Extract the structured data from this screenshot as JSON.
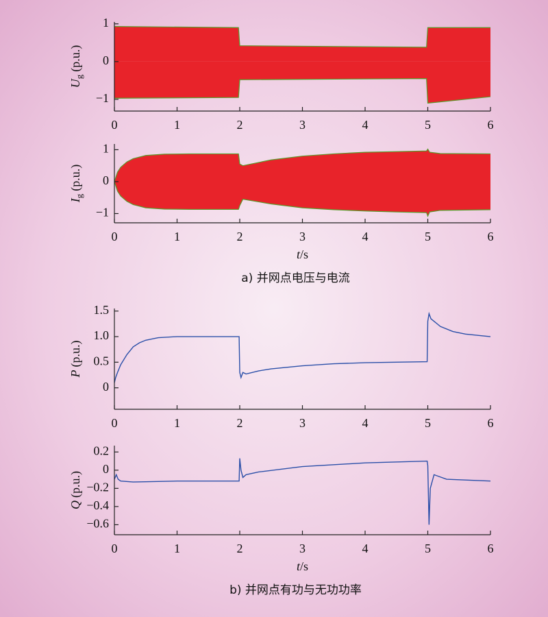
{
  "chart_data": [
    {
      "type": "band",
      "ylabel": {
        "symbol": "U",
        "sub": "g",
        "unit": "(p.u.)"
      },
      "x": [
        0,
        1.98,
        2,
        4.98,
        5,
        6
      ],
      "upper": [
        0.93,
        0.9,
        0.42,
        0.38,
        0.9,
        0.9
      ],
      "lower": [
        -0.97,
        -0.95,
        -0.48,
        -0.45,
        -1.1,
        -0.93
      ],
      "color": "#e8232a",
      "edge_color": "#5a9a2a",
      "xlim": [
        0,
        6
      ],
      "xticks": [
        0,
        1,
        2,
        3,
        4,
        5,
        6
      ],
      "ylim": [
        -1.31,
        1.05
      ],
      "yticks": [
        {
          "value": -1,
          "label": "−1"
        },
        0,
        1
      ]
    },
    {
      "type": "band",
      "ylabel": {
        "symbol": "I",
        "sub": "g",
        "unit": "(p.u.)"
      },
      "x": [
        0,
        0.05,
        0.1,
        0.2,
        0.3,
        0.5,
        0.8,
        1.2,
        1.98,
        2,
        2.05,
        2.5,
        3,
        3.5,
        4,
        4.5,
        4.98,
        5,
        5.03,
        5.2,
        6
      ],
      "upper": [
        0,
        0.3,
        0.45,
        0.62,
        0.72,
        0.82,
        0.86,
        0.87,
        0.87,
        0.55,
        0.5,
        0.68,
        0.8,
        0.87,
        0.92,
        0.94,
        0.96,
        1.02,
        0.92,
        0.88,
        0.87
      ],
      "lower": [
        0,
        -0.3,
        -0.45,
        -0.62,
        -0.72,
        -0.82,
        -0.86,
        -0.87,
        -0.87,
        -0.75,
        -0.55,
        -0.7,
        -0.82,
        -0.88,
        -0.92,
        -0.95,
        -0.97,
        -1.08,
        -0.95,
        -0.9,
        -0.88
      ],
      "color": "#e8232a",
      "edge_color": "#5a9a2a",
      "xlim": [
        0,
        6
      ],
      "xticks": [
        0,
        1,
        2,
        3,
        4,
        5,
        6
      ],
      "ylim": [
        -1.29,
        1.18
      ],
      "yticks": [
        {
          "value": -1,
          "label": "−1"
        },
        0,
        1
      ],
      "xlabel": {
        "symbol": "t",
        "unit": "/s"
      },
      "caption": "a) 并网点电压与电流"
    },
    {
      "type": "line",
      "ylabel": {
        "symbol": "P",
        "unit": "(p.u.)"
      },
      "x": [
        0,
        0.02,
        0.05,
        0.1,
        0.2,
        0.3,
        0.4,
        0.5,
        0.7,
        1,
        1.5,
        1.99,
        2,
        2.02,
        2.05,
        2.1,
        2.3,
        2.5,
        3,
        3.5,
        4,
        4.5,
        4.99,
        5,
        5.02,
        5.05,
        5.1,
        5.2,
        5.4,
        5.6,
        6
      ],
      "values": [
        0.1,
        0.2,
        0.3,
        0.45,
        0.65,
        0.8,
        0.88,
        0.93,
        0.98,
        1,
        1,
        1,
        0.3,
        0.2,
        0.3,
        0.27,
        0.33,
        0.37,
        0.43,
        0.47,
        0.49,
        0.5,
        0.51,
        1.3,
        1.45,
        1.35,
        1.3,
        1.2,
        1.1,
        1.05,
        1.0
      ],
      "color": "#2a4fa8",
      "xlim": [
        0,
        6
      ],
      "xticks": [
        0,
        1,
        2,
        3,
        4,
        5,
        6
      ],
      "ylim": [
        -0.42,
        1.55
      ],
      "yticks": [
        0,
        0.5,
        {
          "value": 1,
          "label": "1.0"
        },
        1.5
      ]
    },
    {
      "type": "line",
      "ylabel": {
        "symbol": "Q",
        "unit": "(p.u.)"
      },
      "x": [
        0,
        0.03,
        0.06,
        0.1,
        0.3,
        1,
        1.99,
        2,
        2.02,
        2.05,
        2.1,
        2.3,
        3,
        4,
        4.99,
        5,
        5.02,
        5.04,
        5.1,
        5.3,
        6
      ],
      "values": [
        -0.1,
        -0.05,
        -0.1,
        -0.12,
        -0.13,
        -0.12,
        -0.12,
        0.13,
        0,
        -0.08,
        -0.05,
        -0.02,
        0.04,
        0.08,
        0.1,
        0.05,
        -0.6,
        -0.2,
        -0.05,
        -0.1,
        -0.12
      ],
      "color": "#2a4fa8",
      "xlim": [
        0,
        6
      ],
      "xticks": [
        0,
        1,
        2,
        3,
        4,
        5,
        6
      ],
      "ylim": [
        -0.71,
        0.27
      ],
      "yticks": [
        {
          "value": -0.6,
          "label": "−0.6"
        },
        {
          "value": -0.4,
          "label": "−0.4"
        },
        {
          "value": -0.2,
          "label": "−0.2"
        },
        0,
        0.2
      ],
      "xlabel": {
        "symbol": "t",
        "unit": "/s"
      },
      "caption": "b) 并网点有功与无功功率"
    }
  ]
}
